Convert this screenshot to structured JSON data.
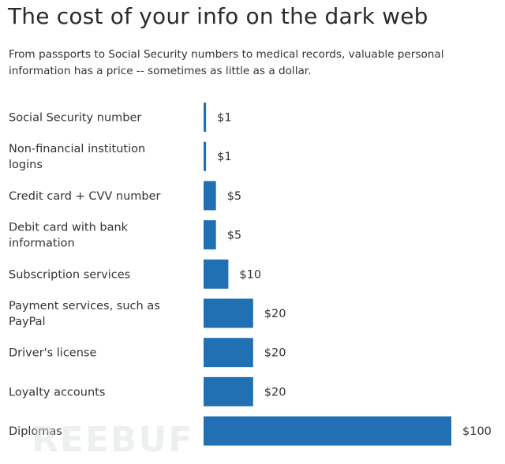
{
  "chart_data": {
    "type": "bar",
    "orientation": "horizontal",
    "title": "The cost of your info on the dark web",
    "subtitle": "From passports to Social Security numbers to medical records, valuable personal information has a price -- sometimes as little as a dollar.",
    "categories": [
      [
        "Social Security number"
      ],
      [
        "Non-financial institution",
        "logins"
      ],
      [
        "Credit card + CVV number"
      ],
      [
        "Debit card with bank",
        "information"
      ],
      [
        "Subscription services"
      ],
      [
        "Payment services, such as",
        "PayPal"
      ],
      [
        "Driver's license"
      ],
      [
        "Loyalty accounts"
      ],
      [
        "Diplomas"
      ]
    ],
    "values": [
      1,
      1,
      5,
      5,
      10,
      20,
      20,
      20,
      100
    ],
    "value_labels": [
      "$1",
      "$1",
      "$5",
      "$5",
      "$10",
      "$20",
      "$20",
      "$20",
      "$100"
    ],
    "xlim": [
      0,
      100
    ],
    "grid": false,
    "bar_color": "#2270b4"
  },
  "watermark": "REEBUF"
}
